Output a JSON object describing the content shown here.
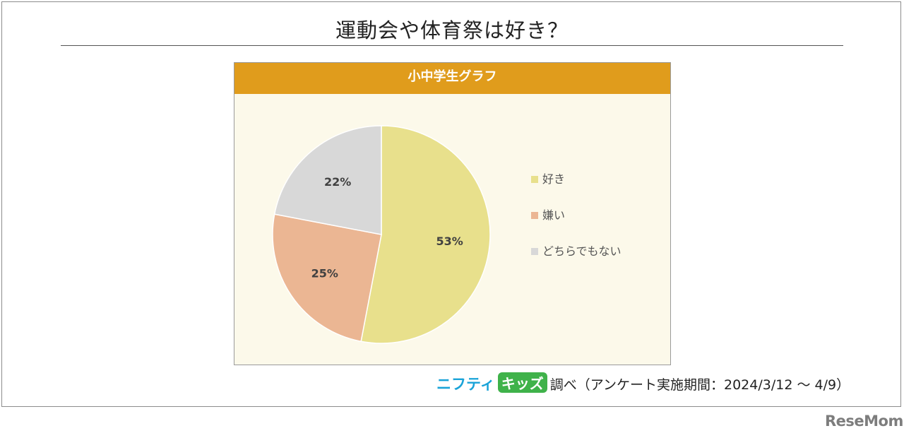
{
  "title": "運動会や体育祭は好き？",
  "chart_data": {
    "type": "pie",
    "title": "小中学生グラフ",
    "slices": [
      {
        "label": "好き",
        "value": 53,
        "display": "53%",
        "color": "#e8e08c"
      },
      {
        "label": "嫌い",
        "value": 25,
        "display": "25%",
        "color": "#ebb693"
      },
      {
        "label": "どちらでもない",
        "value": 22,
        "display": "22%",
        "color": "#d8d8d8"
      }
    ],
    "legend_position": "right"
  },
  "source": {
    "brand_part1": "ニフティ",
    "brand_part2": "キッズ",
    "text": "調べ（アンケート実施期間：2024/3/12 ～ 4/9）"
  },
  "watermark": "ReseMom"
}
